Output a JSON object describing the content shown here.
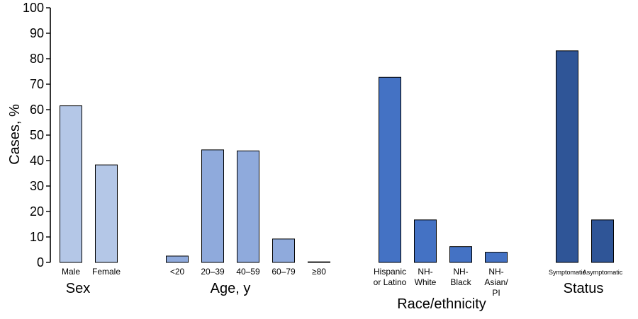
{
  "chart_data": {
    "type": "bar",
    "ylabel": "Cases, %",
    "ylim": [
      0,
      100
    ],
    "yticks": [
      "0",
      "10",
      "20",
      "30",
      "40",
      "50",
      "60",
      "70",
      "80",
      "90",
      "100"
    ],
    "grid": false,
    "groups": [
      {
        "name": "Sex",
        "color": "#b4c7e7",
        "categories": [
          [
            "Male"
          ],
          [
            "Female"
          ]
        ],
        "values": [
          61.5,
          38.3
        ]
      },
      {
        "name": "Age, y",
        "color": "#8faadc",
        "categories": [
          [
            "<20"
          ],
          [
            "20–39"
          ],
          [
            "40–59"
          ],
          [
            "60–79"
          ],
          [
            "≥80"
          ]
        ],
        "values": [
          2.5,
          44.2,
          43.8,
          9.2,
          0.2
        ]
      },
      {
        "name": "Race/ethnicity",
        "color": "#4472c4",
        "categories": [
          [
            "Hispanic",
            "or Latino"
          ],
          [
            "NH-",
            "White"
          ],
          [
            "NH-",
            "Black"
          ],
          [
            "NH-",
            "Asian/",
            "PI"
          ]
        ],
        "values": [
          72.7,
          16.7,
          6.2,
          4.0
        ]
      },
      {
        "name": "Status",
        "color": "#2f5597",
        "categories": [
          [
            "Symptomatic"
          ],
          [
            "Asymptomatic"
          ]
        ],
        "values": [
          83.1,
          16.7
        ]
      }
    ]
  }
}
